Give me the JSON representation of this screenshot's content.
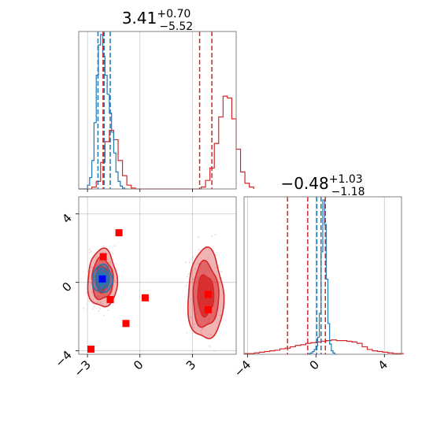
{
  "colors": {
    "red": "#d62728",
    "blue": "#1f77b4",
    "marker_red": "#ff0000",
    "marker_blue": "#0000ff",
    "grid": "#b0b0b0"
  },
  "chart_data": {
    "type": "corner",
    "grid": true,
    "parameters": [
      {
        "title": {
          "value": "3.41",
          "plus": "+0.70",
          "minus": "−5.52"
        },
        "range": [
          -3.5,
          5.5
        ],
        "ticks": [
          {
            "v": -3,
            "label": "−3"
          },
          {
            "v": 0,
            "label": "0"
          },
          {
            "v": 3,
            "label": "3"
          }
        ]
      },
      {
        "title": {
          "value": "−0.48",
          "plus": "+1.03",
          "minus": "−1.18"
        },
        "range": [
          -4.2,
          5.0
        ],
        "ticks": [
          {
            "v": -4,
            "label": "−4"
          },
          {
            "v": 0,
            "label": "0"
          },
          {
            "v": 4,
            "label": "4"
          }
        ]
      }
    ],
    "quantile_lines": {
      "red_param1": [
        -2.11,
        3.41,
        4.11
      ],
      "blue_param1": [
        -2.4,
        -2.05,
        -1.7
      ],
      "red_param2": [
        -1.66,
        -0.48,
        0.55
      ],
      "blue_param2": [
        0.05,
        0.3,
        0.55
      ]
    },
    "hist_param1": {
      "red": {
        "bin_start": -3.5,
        "bin_width": 0.25,
        "counts": [
          0,
          0,
          0,
          2,
          8,
          28,
          50,
          62,
          52,
          30,
          14,
          4,
          1,
          0,
          0,
          0,
          0,
          0,
          0,
          0,
          0,
          0,
          0,
          0,
          0,
          0,
          0,
          0,
          2,
          9,
          22,
          48,
          76,
          98,
          96,
          74,
          42,
          18,
          6,
          2
        ]
      },
      "blue": {
        "bin_start": -3.5,
        "bin_width": 0.125,
        "counts": [
          0,
          0,
          0,
          0,
          4,
          12,
          30,
          70,
          120,
          152,
          163,
          140,
          120,
          100,
          80,
          60,
          38,
          18,
          8,
          3,
          1,
          0
        ]
      }
    },
    "hist_param2": {
      "red": {
        "bin_start": -4.2,
        "bin_width": 0.3,
        "counts": [
          1,
          1,
          2,
          3,
          4,
          5,
          6,
          8,
          9,
          11,
          13,
          14,
          16,
          17,
          18,
          19,
          20,
          21,
          20,
          20,
          19,
          18,
          16,
          11,
          7,
          5,
          4,
          3,
          2,
          1,
          1
        ]
      },
      "blue": {
        "bin_start": -0.5,
        "bin_width": 0.1,
        "counts": [
          0,
          1,
          2,
          4,
          7,
          12,
          25,
          60,
          150,
          226,
          190,
          110,
          45,
          15,
          5,
          2,
          0
        ]
      }
    },
    "scatter_markers": {
      "red": [
        [
          -2.1,
          1.5
        ],
        [
          -1.2,
          2.9
        ],
        [
          -1.7,
          -1.0
        ],
        [
          -0.8,
          -2.4
        ],
        [
          0.3,
          -0.9
        ],
        [
          3.9,
          -0.7
        ],
        [
          3.9,
          -1.6
        ],
        [
          -2.8,
          -3.9
        ]
      ],
      "blue": [
        [
          -2.15,
          0.2
        ]
      ]
    },
    "blobs": [
      {
        "color": "red",
        "center": [
          -2.15,
          0.2
        ],
        "sx": 0.62,
        "sy": 1.25
      },
      {
        "color": "blue",
        "center": [
          -2.15,
          0.2
        ],
        "sx": 0.42,
        "sy": 0.6
      },
      {
        "color": "red",
        "center": [
          3.75,
          -0.75
        ],
        "sx": 0.75,
        "sy": 1.95
      }
    ]
  }
}
